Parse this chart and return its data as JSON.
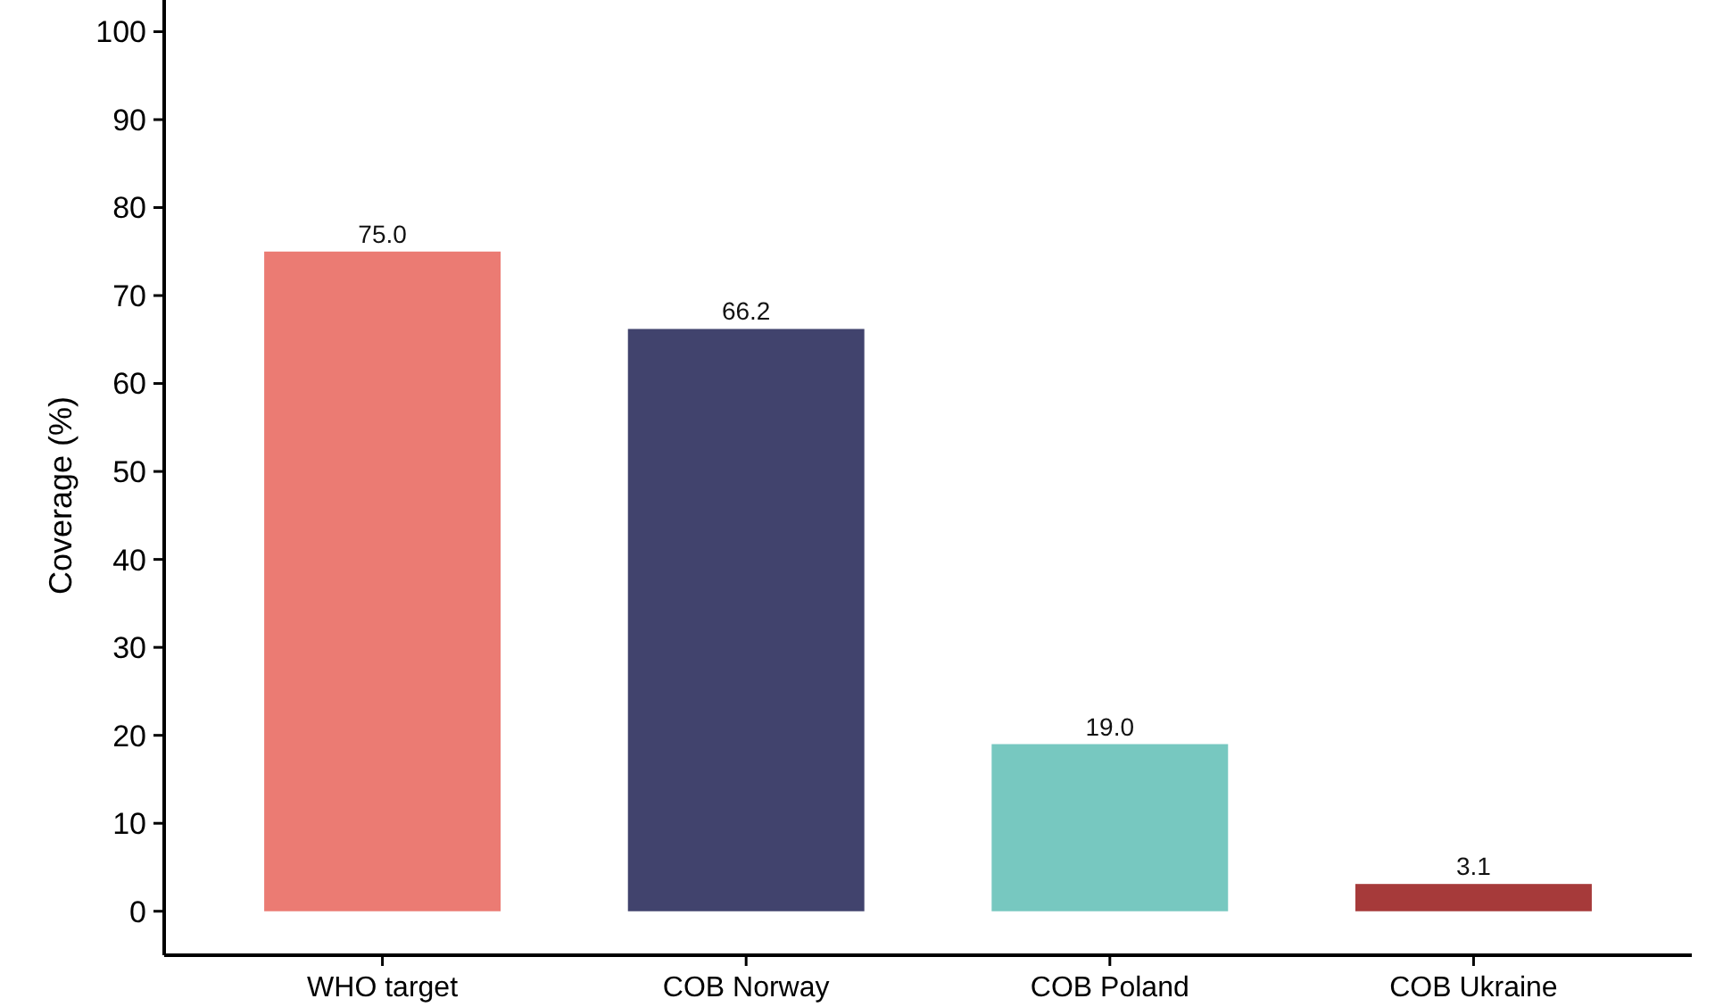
{
  "chart_data": {
    "type": "bar",
    "ylabel": "Coverage (%)",
    "categories": [
      "WHO target",
      "COB Norway",
      "COB Poland",
      "COB Ukraine"
    ],
    "values": [
      75.0,
      66.2,
      19.0,
      3.1
    ],
    "value_labels": [
      "75.0",
      "66.2",
      "19.0",
      "3.1"
    ],
    "colors": [
      "#eb7b73",
      "#41436d",
      "#77c8c0",
      "#a63a3a"
    ],
    "ylim": [
      -5,
      103.6
    ],
    "yticks": [
      0,
      10,
      20,
      30,
      40,
      50,
      60,
      70,
      80,
      90,
      100
    ],
    "grid": false
  }
}
